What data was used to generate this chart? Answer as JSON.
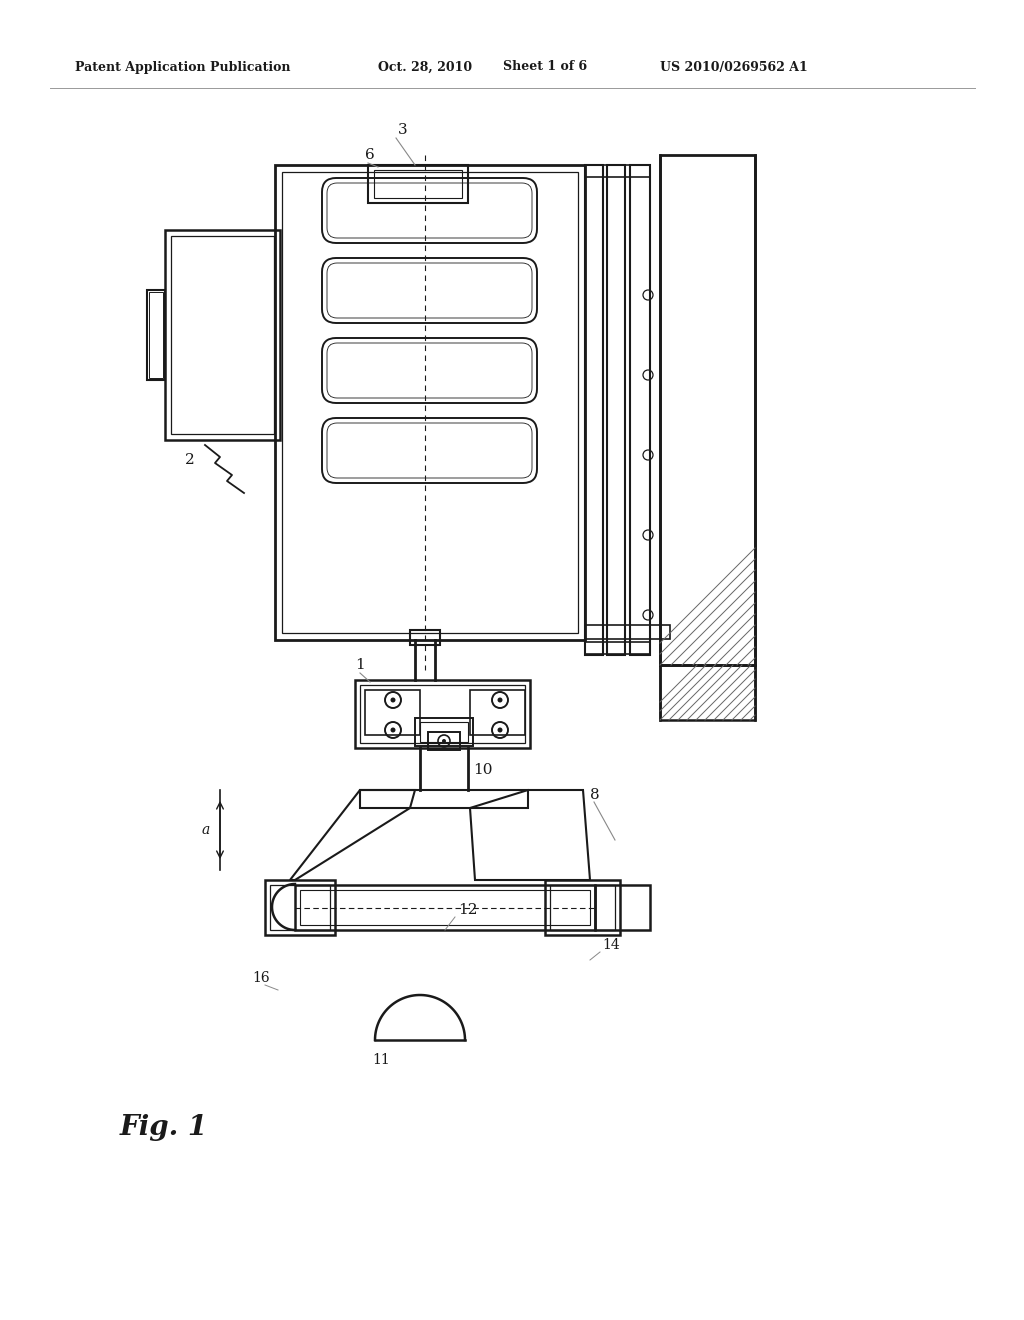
{
  "bg_color": "#ffffff",
  "line_color": "#1a1a1a",
  "hatch_color": "#666666",
  "header_text": "Patent Application Publication",
  "header_date": "Oct. 28, 2010",
  "header_sheet": "Sheet 1 of 6",
  "header_patent": "US 2010/0269562 A1",
  "figure_label": "Fig. 1"
}
